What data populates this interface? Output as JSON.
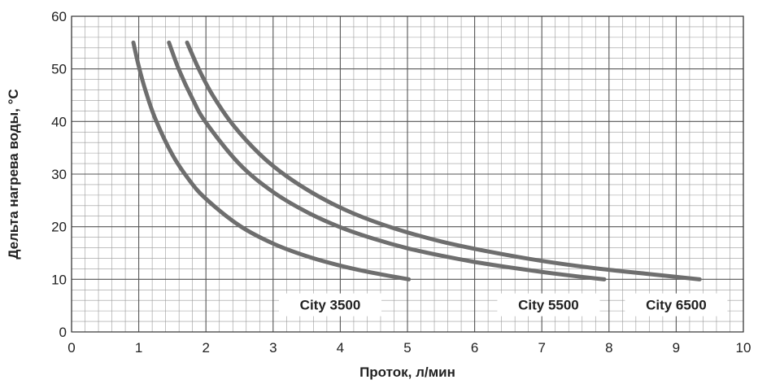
{
  "chart_data": {
    "type": "line",
    "title": "",
    "xlabel": "Проток, л/мин",
    "ylabel": "Дельта нагрева воды, °C",
    "xlim": [
      0,
      10
    ],
    "ylim": [
      0,
      60
    ],
    "x_ticks": [
      "0",
      "1",
      "2",
      "3",
      "4",
      "5",
      "6",
      "7",
      "8",
      "9",
      "10"
    ],
    "y_ticks": [
      "0",
      "10",
      "20",
      "30",
      "40",
      "50",
      "60"
    ],
    "grid": true,
    "minor_grid": true,
    "series": [
      {
        "name": "City 3500",
        "x": [
          0.92,
          1.0,
          1.1,
          1.25,
          1.5,
          1.75,
          2.0,
          2.5,
          3.0,
          3.5,
          4.0,
          4.5,
          5.02
        ],
        "y": [
          55,
          50.5,
          45.9,
          40.4,
          33.7,
          28.9,
          25.3,
          20.2,
          16.8,
          14.4,
          12.6,
          11.2,
          10
        ]
      },
      {
        "name": "City 5500",
        "x": [
          1.45,
          1.6,
          1.8,
          2.0,
          2.5,
          3.0,
          3.5,
          4.0,
          4.5,
          5.0,
          5.5,
          6.0,
          6.5,
          7.0,
          7.5,
          7.93
        ],
        "y": [
          55,
          49.8,
          44.3,
          39.8,
          31.9,
          26.6,
          22.8,
          19.9,
          17.7,
          15.9,
          14.5,
          13.3,
          12.3,
          11.4,
          10.6,
          10
        ]
      },
      {
        "name": "City 6500",
        "x": [
          1.72,
          1.9,
          2.1,
          2.4,
          2.8,
          3.2,
          3.7,
          4.2,
          4.8,
          5.5,
          6.2,
          7.0,
          7.8,
          8.6,
          9.35
        ],
        "y": [
          55,
          49.8,
          45.0,
          39.4,
          33.8,
          29.6,
          25.6,
          22.5,
          19.7,
          17.2,
          15.3,
          13.5,
          12.1,
          11.0,
          10
        ]
      }
    ],
    "colors": {
      "line": "#6e6e6e",
      "grid": "#555555",
      "minor_grid": "#9a9a9a",
      "text": "#222222"
    }
  }
}
